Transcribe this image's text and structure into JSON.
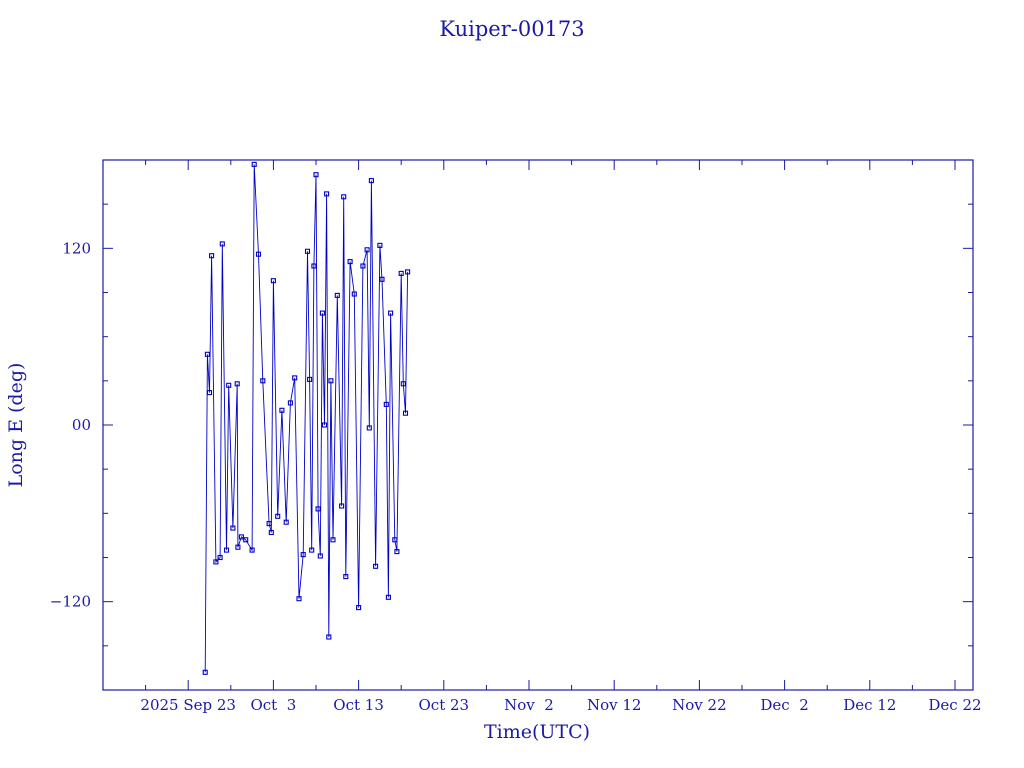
{
  "chart_data": {
    "type": "line",
    "title": "Kuiper-00173",
    "xlabel": "Time(UTC)",
    "ylabel": "Long E (deg)",
    "ylim": [
      -180,
      180
    ],
    "xlim_days_from_sep13": [
      0,
      100
    ],
    "x_tick_labels": [
      "2025 Sep 23",
      "Oct  3",
      "Oct 13",
      "Oct 23",
      "Nov  2",
      "Nov 12",
      "Nov 22",
      "Dec  2",
      "Dec 12",
      "Dec 22"
    ],
    "y_tick_values": [
      -120,
      0,
      120
    ],
    "y_tick_labels": [
      "−120",
      "00",
      "120"
    ],
    "grid": false,
    "colors": {
      "axis": "#1a1aa6",
      "series": "#0000c8"
    },
    "series": [
      {
        "points": [
          [
            "2025-09-25 00:00",
            -168
          ],
          [
            "2025-09-25 06:00",
            48
          ],
          [
            "2025-09-25 12:00",
            22
          ],
          [
            "2025-09-25 18:00",
            115
          ],
          [
            "2025-09-26 06:00",
            -93
          ],
          [
            "2025-09-26 18:00",
            -90
          ],
          [
            "2025-09-27 00:00",
            123
          ],
          [
            "2025-09-27 12:00",
            -85
          ],
          [
            "2025-09-27 18:00",
            27
          ],
          [
            "2025-09-28 06:00",
            -70
          ],
          [
            "2025-09-28 18:00",
            28
          ],
          [
            "2025-09-28 20:00",
            -83
          ],
          [
            "2025-09-29 06:00",
            -76
          ],
          [
            "2025-09-29 18:00",
            -78
          ],
          [
            "2025-09-30 12:00",
            -85
          ],
          [
            "2025-09-30 18:00",
            177
          ],
          [
            "2025-10-01 06:00",
            116
          ],
          [
            "2025-10-01 18:00",
            30
          ],
          [
            "2025-10-02 12:00",
            -67
          ],
          [
            "2025-10-02 18:00",
            -73
          ],
          [
            "2025-10-03 00:00",
            98
          ],
          [
            "2025-10-03 12:00",
            -62
          ],
          [
            "2025-10-04 00:00",
            10
          ],
          [
            "2025-10-04 12:00",
            -66
          ],
          [
            "2025-10-05 00:00",
            15
          ],
          [
            "2025-10-05 12:00",
            32
          ],
          [
            "2025-10-06 00:00",
            -118
          ],
          [
            "2025-10-06 12:00",
            -88
          ],
          [
            "2025-10-07 00:00",
            118
          ],
          [
            "2025-10-07 06:00",
            31
          ],
          [
            "2025-10-07 12:00",
            -85
          ],
          [
            "2025-10-07 18:00",
            108
          ],
          [
            "2025-10-08 00:00",
            170
          ],
          [
            "2025-10-08 06:00",
            -57
          ],
          [
            "2025-10-08 12:00",
            -89
          ],
          [
            "2025-10-08 18:00",
            76
          ],
          [
            "2025-10-09 00:00",
            0
          ],
          [
            "2025-10-09 06:00",
            157
          ],
          [
            "2025-10-09 12:00",
            -144
          ],
          [
            "2025-10-09 18:00",
            30
          ],
          [
            "2025-10-10 00:00",
            -78
          ],
          [
            "2025-10-10 12:00",
            88
          ],
          [
            "2025-10-11 00:00",
            -55
          ],
          [
            "2025-10-11 06:00",
            155
          ],
          [
            "2025-10-11 12:00",
            -103
          ],
          [
            "2025-10-12 00:00",
            111
          ],
          [
            "2025-10-12 12:00",
            89
          ],
          [
            "2025-10-13 00:00",
            -124
          ],
          [
            "2025-10-13 12:00",
            108
          ],
          [
            "2025-10-14 00:00",
            119
          ],
          [
            "2025-10-14 06:00",
            -2
          ],
          [
            "2025-10-14 12:00",
            166
          ],
          [
            "2025-10-15 00:00",
            -96
          ],
          [
            "2025-10-15 12:00",
            122
          ],
          [
            "2025-10-15 18:00",
            99
          ],
          [
            "2025-10-16 06:00",
            14
          ],
          [
            "2025-10-16 12:00",
            -117
          ],
          [
            "2025-10-16 18:00",
            76
          ],
          [
            "2025-10-17 06:00",
            -78
          ],
          [
            "2025-10-17 12:00",
            -86
          ],
          [
            "2025-10-18 00:00",
            103
          ],
          [
            "2025-10-18 06:00",
            28
          ],
          [
            "2025-10-18 12:00",
            8
          ],
          [
            "2025-10-18 18:00",
            104
          ]
        ]
      }
    ]
  }
}
